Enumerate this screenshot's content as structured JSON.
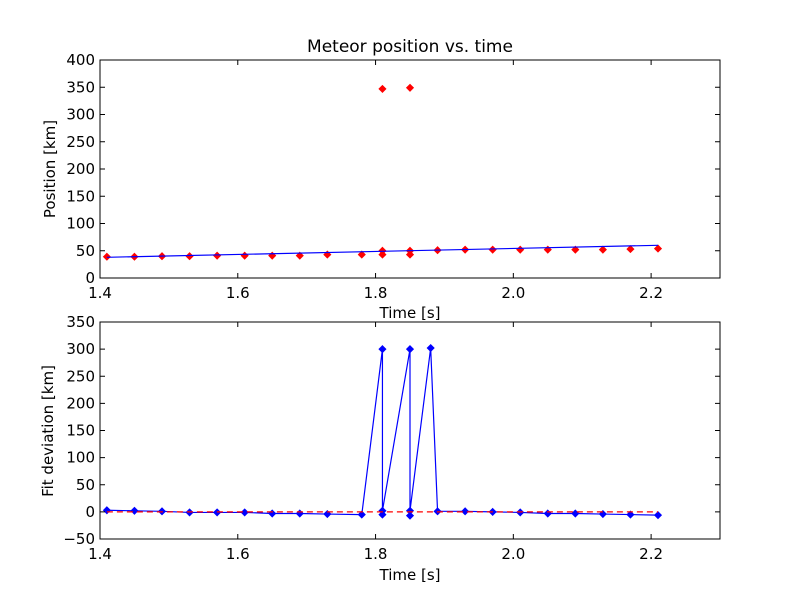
{
  "chart_data": [
    {
      "type": "scatter",
      "title": "Meteor position vs. time",
      "xlabel": "Time [s]",
      "ylabel": "Position [km]",
      "xlim": [
        1.4,
        2.3
      ],
      "ylim": [
        0,
        400
      ],
      "xticks": [
        1.4,
        1.6,
        1.8,
        2.0,
        2.2
      ],
      "yticks": [
        0,
        50,
        100,
        150,
        200,
        250,
        300,
        350,
        400
      ],
      "grid": false,
      "series": [
        {
          "kind": "points",
          "marker": "diamond",
          "color": "#ff0000",
          "x": [
            1.41,
            1.45,
            1.49,
            1.53,
            1.57,
            1.61,
            1.65,
            1.69,
            1.73,
            1.78,
            1.81,
            1.81,
            1.81,
            1.85,
            1.85,
            1.85,
            1.89,
            1.93,
            1.97,
            2.01,
            2.05,
            2.09,
            2.13,
            2.17,
            2.21
          ],
          "y": [
            39,
            39,
            40,
            40,
            41,
            41,
            41,
            41,
            43,
            43,
            43,
            50,
            347,
            43,
            50,
            349,
            51,
            52,
            52,
            52,
            52,
            52,
            52,
            53,
            54
          ]
        },
        {
          "kind": "line",
          "color": "#0000ff",
          "x": [
            1.41,
            2.21
          ],
          "y": [
            38,
            60
          ]
        }
      ]
    },
    {
      "type": "line",
      "title": "",
      "xlabel": "Time [s]",
      "ylabel": "Fit deviation [km]",
      "xlim": [
        1.4,
        2.3
      ],
      "ylim": [
        -50,
        350
      ],
      "xticks": [
        1.4,
        1.6,
        1.8,
        2.0,
        2.2
      ],
      "yticks": [
        -50,
        0,
        50,
        100,
        150,
        200,
        250,
        300,
        350
      ],
      "grid": false,
      "series": [
        {
          "kind": "line-markers",
          "marker": "diamond",
          "color": "#0000ff",
          "x": [
            1.41,
            1.45,
            1.49,
            1.53,
            1.57,
            1.61,
            1.65,
            1.69,
            1.73,
            1.78,
            1.81,
            1.81,
            1.81,
            1.85,
            1.85,
            1.85,
            1.88,
            1.89,
            1.93,
            1.97,
            2.01,
            2.05,
            2.09,
            2.13,
            2.17,
            2.21
          ],
          "y": [
            3,
            2,
            1,
            -1,
            -1,
            -1,
            -3,
            -3,
            -4,
            -5,
            300,
            -5,
            2,
            300,
            -7,
            2,
            302,
            1,
            1,
            0,
            -1,
            -3,
            -3,
            -4,
            -5,
            -6
          ]
        },
        {
          "kind": "dashed-line",
          "color": "#ff0000",
          "x": [
            1.41,
            2.21
          ],
          "y": [
            0,
            0
          ]
        }
      ]
    }
  ]
}
